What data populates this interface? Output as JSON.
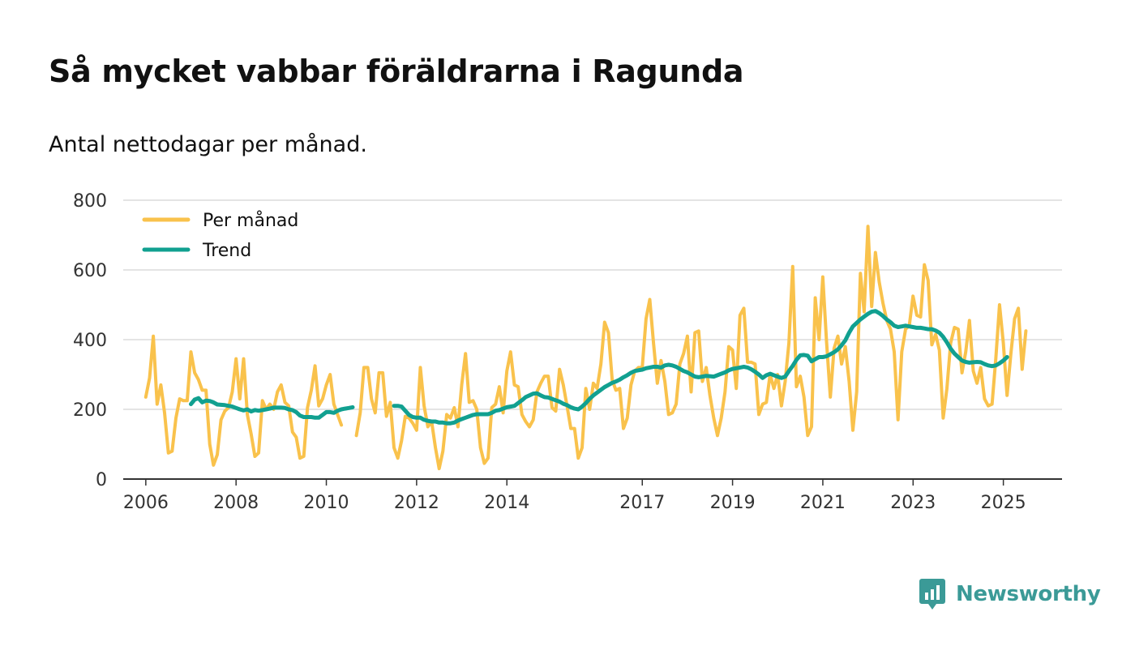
{
  "title": "Så mycket vabbar föräldrarna i Ragunda",
  "subtitle": "Antal nettodagar per månad.",
  "brand": {
    "name": "Newsworthy",
    "color": "#3b9a97",
    "icon": "newsworthy-logo-icon"
  },
  "chart_data": {
    "type": "line",
    "title": "Så mycket vabbar föräldrarna i Ragunda",
    "xlabel": "",
    "ylabel": "",
    "ylim": [
      0,
      800
    ],
    "xlim": [
      2005.5,
      2026.3
    ],
    "yticks": [
      0,
      200,
      400,
      600,
      800
    ],
    "xticks": [
      2006,
      2008,
      2010,
      2012,
      2014,
      2017,
      2019,
      2021,
      2023,
      2025
    ],
    "grid": "horizontal",
    "legend_position": "top-left",
    "series": [
      {
        "name": "Per månad",
        "color": "#f9c24c",
        "x_start": 2006.0,
        "step": 0.08333,
        "values": [
          235,
          290,
          410,
          215,
          270,
          190,
          75,
          80,
          175,
          230,
          225,
          225,
          365,
          305,
          285,
          255,
          255,
          100,
          40,
          70,
          170,
          195,
          205,
          250,
          345,
          230,
          345,
          185,
          130,
          65,
          75,
          225,
          200,
          215,
          200,
          250,
          270,
          220,
          210,
          135,
          120,
          60,
          65,
          205,
          255,
          325,
          210,
          230,
          270,
          300,
          215,
          185,
          155,
          null,
          null,
          null,
          125,
          190,
          320,
          320,
          230,
          190,
          305,
          305,
          180,
          220,
          90,
          60,
          110,
          180,
          175,
          160,
          140,
          320,
          210,
          150,
          165,
          90,
          30,
          80,
          185,
          175,
          205,
          150,
          270,
          360,
          220,
          225,
          200,
          90,
          45,
          60,
          205,
          215,
          265,
          190,
          310,
          365,
          270,
          265,
          185,
          165,
          150,
          170,
          250,
          275,
          295,
          295,
          205,
          195,
          315,
          270,
          210,
          145,
          145,
          60,
          90,
          260,
          200,
          275,
          260,
          330,
          450,
          420,
          285,
          255,
          260,
          145,
          175,
          270,
          310,
          320,
          320,
          460,
          515,
          390,
          275,
          340,
          280,
          185,
          190,
          215,
          330,
          360,
          410,
          250,
          420,
          425,
          280,
          320,
          240,
          175,
          125,
          175,
          250,
          380,
          370,
          260,
          470,
          490,
          335,
          335,
          330,
          185,
          215,
          220,
          300,
          260,
          300,
          210,
          280,
          390,
          610,
          265,
          295,
          235,
          125,
          150,
          520,
          400,
          580,
          395,
          235,
          375,
          410,
          330,
          380,
          280,
          140,
          250,
          590,
          480,
          725,
          495,
          650,
          565,
          505,
          455,
          430,
          365,
          170,
          365,
          430,
          440,
          525,
          470,
          465,
          615,
          570,
          385,
          415,
          370,
          175,
          260,
          390,
          435,
          430,
          305,
          365,
          455,
          310,
          275,
          320,
          230,
          210,
          215,
          345,
          500,
          390,
          240,
          360,
          460,
          490,
          315,
          425
        ]
      },
      {
        "name": "Trend",
        "color": "#11a090",
        "x_start": 2007.0,
        "step": 0.08333,
        "values": [
          215,
          228,
          232,
          220,
          225,
          224,
          220,
          214,
          213,
          212,
          210,
          208,
          204,
          200,
          197,
          200,
          194,
          198,
          196,
          198,
          200,
          202,
          205,
          205,
          205,
          204,
          200,
          198,
          192,
          182,
          178,
          178,
          178,
          176,
          176,
          184,
          192,
          192,
          190,
          196,
          200,
          202,
          204,
          206,
          null,
          null,
          null,
          null,
          null,
          null,
          null,
          null,
          null,
          null,
          210,
          210,
          208,
          196,
          184,
          178,
          176,
          176,
          170,
          167,
          165,
          165,
          162,
          162,
          160,
          160,
          162,
          168,
          172,
          176,
          180,
          184,
          186,
          186,
          186,
          186,
          190,
          196,
          198,
          202,
          206,
          208,
          210,
          218,
          226,
          235,
          240,
          245,
          246,
          240,
          235,
          234,
          230,
          226,
          222,
          216,
          212,
          206,
          202,
          200,
          208,
          218,
          230,
          240,
          248,
          256,
          264,
          270,
          276,
          280,
          285,
          292,
          298,
          305,
          310,
          312,
          314,
          318,
          320,
          322,
          322,
          320,
          326,
          328,
          326,
          322,
          316,
          310,
          306,
          300,
          294,
          292,
          294,
          296,
          295,
          294,
          298,
          302,
          306,
          312,
          316,
          318,
          320,
          322,
          320,
          315,
          308,
          300,
          290,
          298,
          302,
          298,
          294,
          290,
          294,
          310,
          325,
          342,
          355,
          356,
          354,
          338,
          344,
          350,
          350,
          352,
          358,
          364,
          372,
          384,
          398,
          420,
          438,
          448,
          458,
          466,
          474,
          480,
          482,
          476,
          468,
          458,
          450,
          440,
          436,
          438,
          440,
          438,
          436,
          434,
          434,
          432,
          430,
          430,
          426,
          420,
          408,
          392,
          374,
          360,
          350,
          340,
          336,
          334,
          335,
          336,
          335,
          330,
          326,
          324,
          326,
          332,
          340,
          350
        ]
      }
    ]
  }
}
